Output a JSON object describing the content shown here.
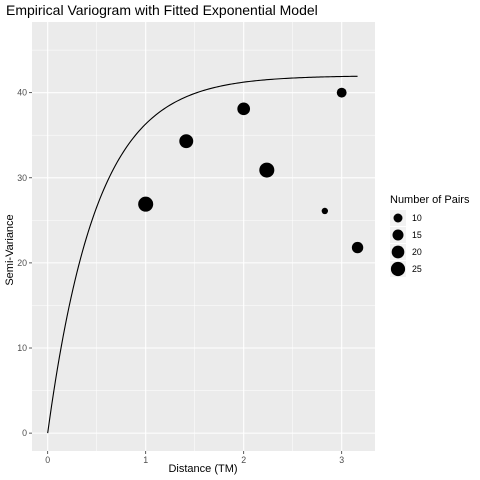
{
  "chart_data": {
    "type": "scatter",
    "title": "Empirical Variogram with Fitted Exponential Model",
    "xlabel": "Distance (TM)",
    "ylabel": "Semi-Variance",
    "xlim": [
      -0.16,
      3.34
    ],
    "ylim": [
      -2.1,
      48.3
    ],
    "x_ticks": [
      0,
      1,
      2,
      3
    ],
    "y_ticks": [
      0,
      10,
      20,
      30,
      40
    ],
    "grid": true,
    "background": "#ebebeb",
    "grid_color": "#ffffff",
    "point_color": "#000000",
    "legend": {
      "title": "Number of Pairs",
      "placement": "right",
      "entries": [
        {
          "label": "10",
          "value": 10
        },
        {
          "label": "15",
          "value": 15
        },
        {
          "label": "20",
          "value": 20
        },
        {
          "label": "25",
          "value": 25
        }
      ]
    },
    "points": [
      {
        "x": 1.0,
        "y": 26.9,
        "n": 28
      },
      {
        "x": 1.414,
        "y": 34.3,
        "n": 24
      },
      {
        "x": 2.0,
        "y": 38.1,
        "n": 20
      },
      {
        "x": 2.236,
        "y": 30.9,
        "n": 28
      },
      {
        "x": 2.828,
        "y": 26.1,
        "n": 5
      },
      {
        "x": 3.0,
        "y": 40.0,
        "n": 12
      },
      {
        "x": 3.162,
        "y": 21.8,
        "n": 16
      }
    ],
    "fitted_model": {
      "type": "exponential",
      "sill": 42.0,
      "range": 0.5,
      "nugget": 0.0,
      "x_range": [
        0,
        3.162
      ]
    }
  }
}
